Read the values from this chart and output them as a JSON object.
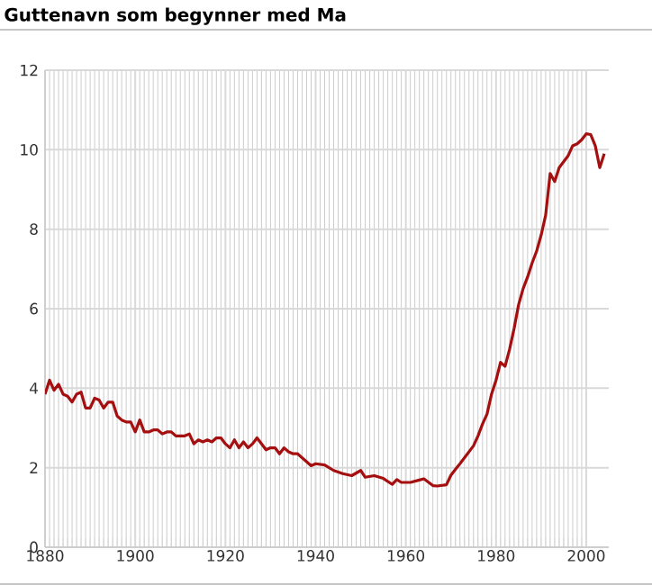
{
  "chart_data": {
    "type": "line",
    "title": "Guttenavn som begynner med Ma",
    "color": "#a50f0f",
    "grid": true,
    "xlim": [
      1880,
      2005
    ],
    "ylim": [
      0,
      12
    ],
    "xticks": [
      1880,
      1900,
      1920,
      1940,
      1960,
      1980,
      2000
    ],
    "yticks": [
      0,
      2,
      4,
      6,
      8,
      10,
      12
    ],
    "x": [
      1880,
      1881,
      1882,
      1883,
      1884,
      1885,
      1886,
      1887,
      1888,
      1889,
      1890,
      1891,
      1892,
      1893,
      1894,
      1895,
      1896,
      1897,
      1898,
      1899,
      1900,
      1901,
      1902,
      1903,
      1904,
      1905,
      1906,
      1907,
      1908,
      1909,
      1910,
      1911,
      1912,
      1913,
      1914,
      1915,
      1916,
      1917,
      1918,
      1919,
      1920,
      1921,
      1922,
      1923,
      1924,
      1925,
      1926,
      1927,
      1928,
      1929,
      1930,
      1931,
      1932,
      1933,
      1934,
      1935,
      1936,
      1937,
      1938,
      1939,
      1940,
      1942,
      1944,
      1946,
      1948,
      1950,
      1951,
      1953,
      1955,
      1957,
      1958,
      1959,
      1961,
      1963,
      1964,
      1966,
      1967,
      1969,
      1970,
      1971,
      1972,
      1974,
      1975,
      1976,
      1977,
      1978,
      1979,
      1980,
      1981,
      1982,
      1983,
      1984,
      1985,
      1986,
      1987,
      1988,
      1989,
      1990,
      1991,
      1992,
      1993,
      1994,
      1995,
      1996,
      1997,
      1998,
      1999,
      2000,
      2001,
      2002,
      2003,
      2004
    ],
    "values": [
      3.85,
      4.2,
      3.95,
      4.1,
      3.85,
      3.8,
      3.65,
      3.85,
      3.9,
      3.5,
      3.5,
      3.75,
      3.7,
      3.5,
      3.65,
      3.65,
      3.3,
      3.2,
      3.15,
      3.15,
      2.9,
      3.2,
      2.9,
      2.9,
      2.95,
      2.95,
      2.85,
      2.9,
      2.9,
      2.8,
      2.8,
      2.8,
      2.85,
      2.6,
      2.7,
      2.65,
      2.7,
      2.65,
      2.75,
      2.75,
      2.6,
      2.5,
      2.7,
      2.5,
      2.65,
      2.5,
      2.6,
      2.75,
      2.6,
      2.45,
      2.5,
      2.5,
      2.35,
      2.5,
      2.4,
      2.35,
      2.35,
      2.25,
      2.15,
      2.05,
      2.1,
      2.07,
      1.93,
      1.85,
      1.8,
      1.93,
      1.76,
      1.8,
      1.73,
      1.58,
      1.7,
      1.63,
      1.63,
      1.69,
      1.72,
      1.55,
      1.54,
      1.57,
      1.81,
      1.96,
      2.1,
      2.4,
      2.55,
      2.8,
      3.1,
      3.35,
      3.85,
      4.2,
      4.65,
      4.55,
      4.98,
      5.5,
      6.1,
      6.5,
      6.8,
      7.15,
      7.45,
      7.85,
      8.35,
      9.4,
      9.2,
      9.55,
      9.7,
      9.85,
      10.1,
      10.15,
      10.25,
      10.4,
      10.38,
      10.1,
      9.55,
      9.9
    ]
  }
}
